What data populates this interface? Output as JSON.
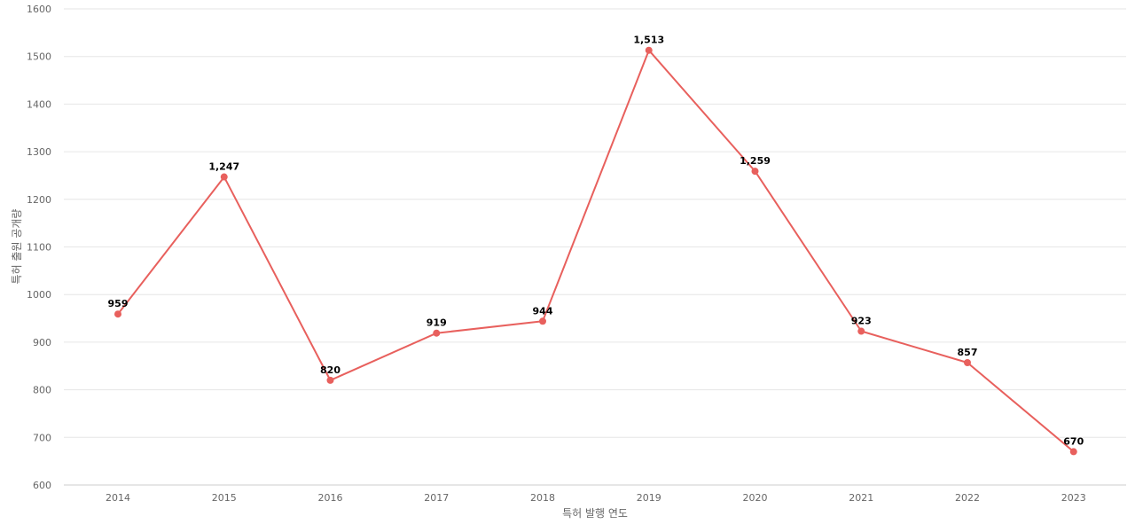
{
  "chart_data": {
    "type": "line",
    "x": [
      "2014",
      "2015",
      "2016",
      "2017",
      "2018",
      "2019",
      "2020",
      "2021",
      "2022",
      "2023"
    ],
    "series": [
      {
        "values": [
          959,
          1247,
          820,
          919,
          944,
          1513,
          1259,
          923,
          857,
          670
        ],
        "labels": [
          "959",
          "1,247",
          "820",
          "919",
          "944",
          "1,513",
          "1,259",
          "923",
          "857",
          "670"
        ],
        "color": "#e8605d"
      }
    ],
    "title": "",
    "xlabel": "특허 발행 연도",
    "ylabel": "특허 출원 공개량",
    "ylim": [
      600,
      1600
    ],
    "yticks": [
      "600",
      "700",
      "800",
      "900",
      "1000",
      "1100",
      "1200",
      "1300",
      "1400",
      "1500",
      "1600"
    ],
    "grid": true,
    "legend": "none"
  }
}
